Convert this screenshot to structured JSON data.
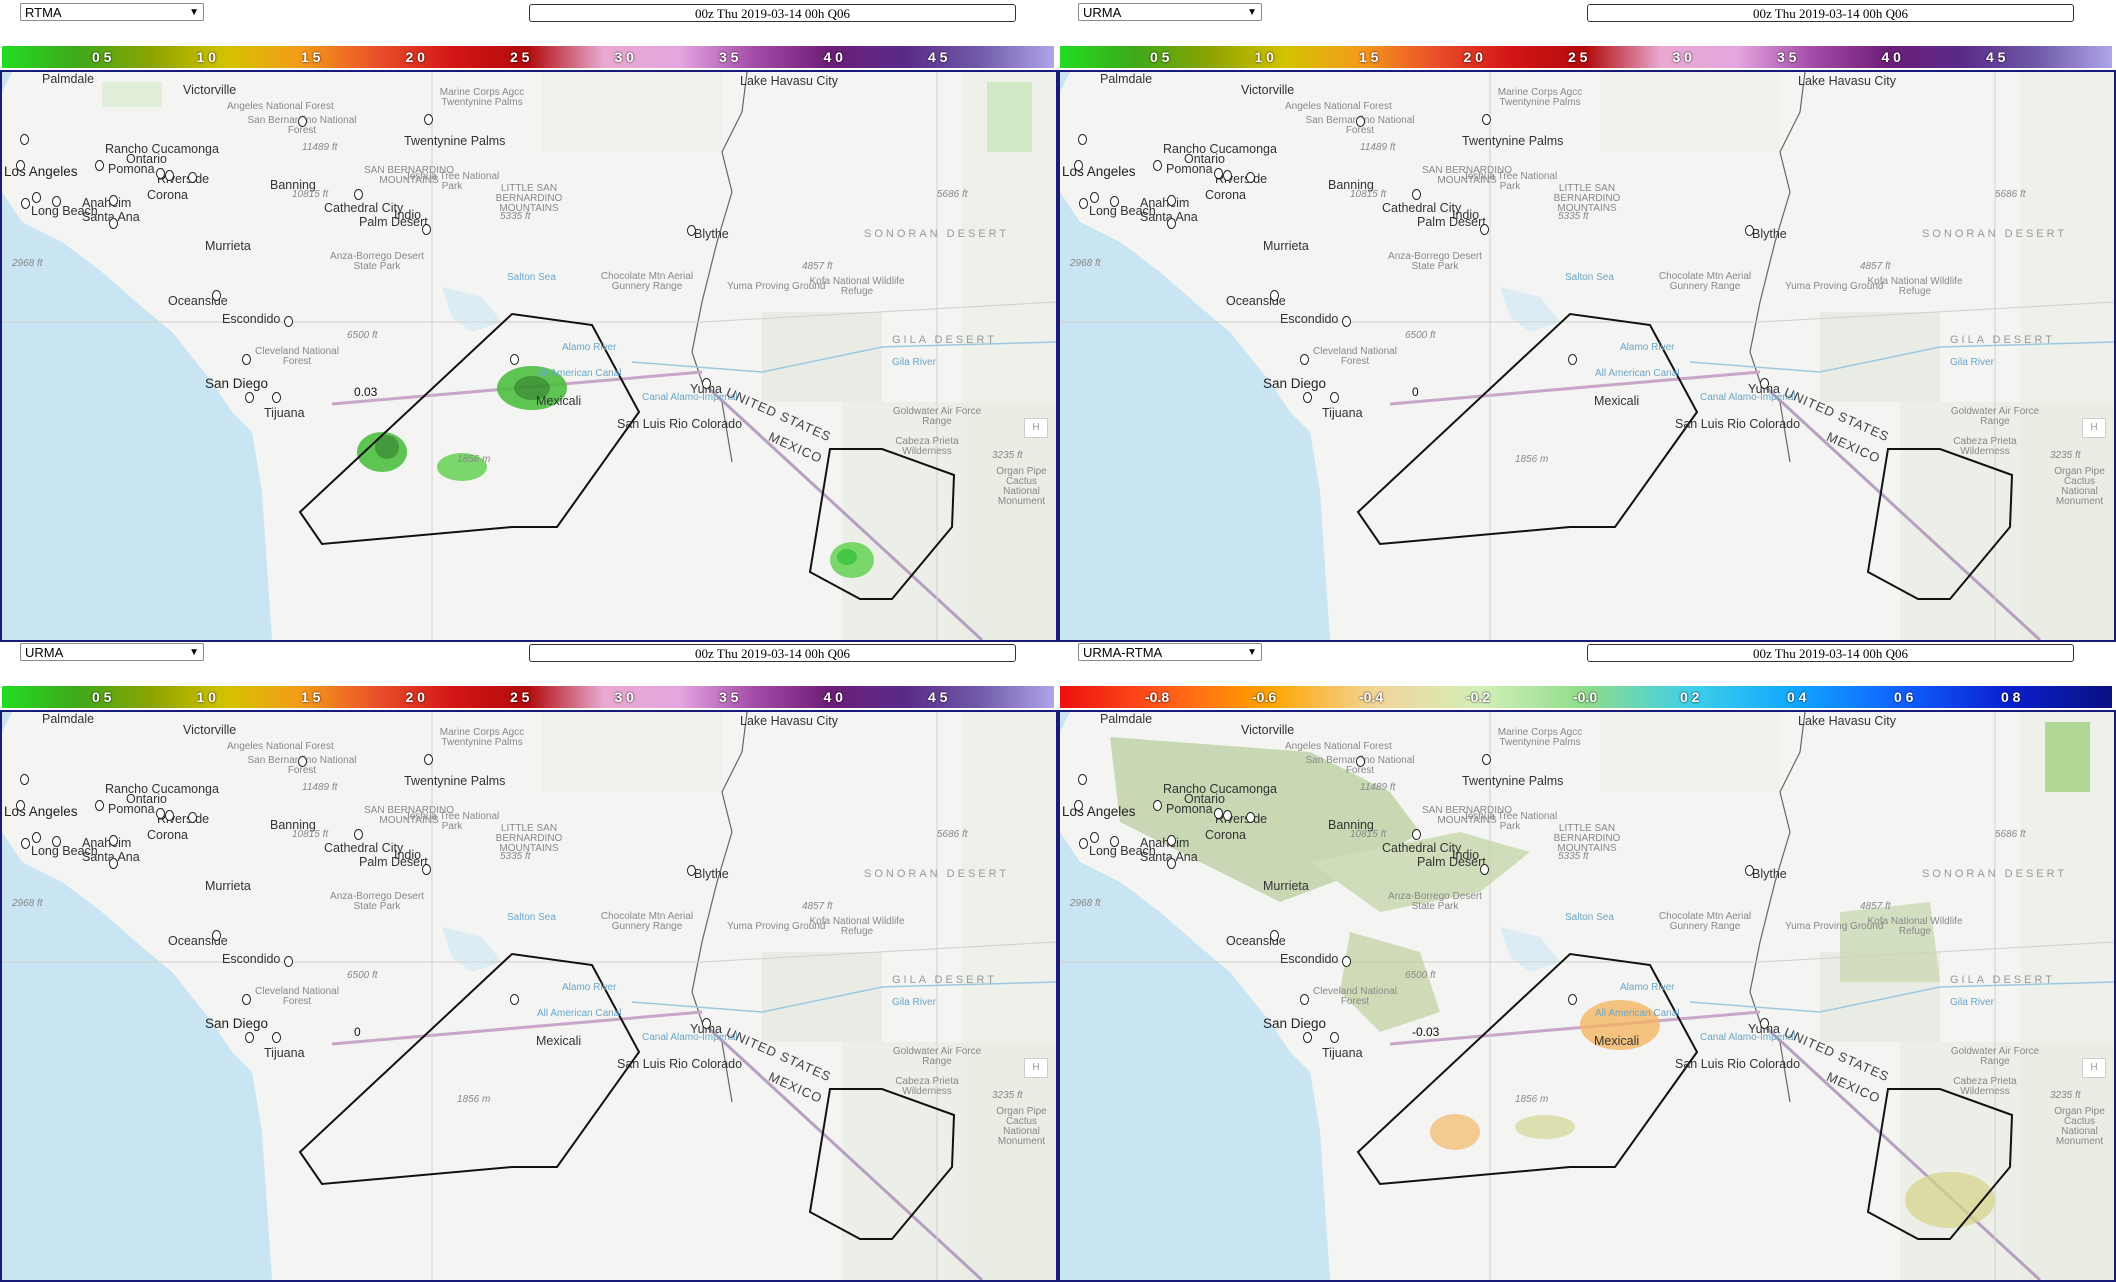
{
  "panels": [
    {
      "id": "p1",
      "product": "RTMA",
      "datetime": "00z Thu 2019-03-14 00h Q06",
      "scale": "precip",
      "overlay": "rtma",
      "value_label": "0.03"
    },
    {
      "id": "p2",
      "product": "URMA",
      "datetime": "00z Thu 2019-03-14 00h Q06",
      "scale": "precip",
      "overlay": "none",
      "value_label": "0"
    },
    {
      "id": "p3",
      "product": "URMA",
      "datetime": "00z Thu 2019-03-14 00h Q06",
      "scale": "precip",
      "overlay": "none",
      "value_label": "0"
    },
    {
      "id": "p4",
      "product": "URMA-RTMA",
      "datetime": "00z Thu 2019-03-14 00h Q06",
      "scale": "diff",
      "overlay": "diff",
      "value_label": "-0.03"
    }
  ],
  "scales": {
    "precip": {
      "ticks": [
        "0 5",
        "1 0",
        "1 5",
        "2 0",
        "2 5",
        "3 0",
        "3 5",
        "4 0",
        "4 5"
      ],
      "stops": [
        "#22dd22",
        "#3ea81a",
        "#8da400",
        "#d4c200",
        "#f59a1a",
        "#ea4f2a",
        "#d31515",
        "#b30b0b",
        "#e8a8cf",
        "#e4a6e0",
        "#a54ca8",
        "#6e1e78",
        "#5a2a88",
        "#6f5aa8",
        "#b0a4e8"
      ]
    },
    "diff": {
      "ticks": [
        "-0.8",
        "-0.6",
        "-0.4",
        "-0.2",
        "-0.0",
        "0 2",
        "0 4",
        "0 6",
        "0 8"
      ],
      "stops": [
        "#ee1010",
        "#ff5a1a",
        "#ffa500",
        "#f2d59a",
        "#d2efb8",
        "#8fdc8a",
        "#3fcfe8",
        "#10a6ff",
        "#1060ff",
        "#0a20d0",
        "#0a1080"
      ]
    }
  },
  "map_labels": {
    "cities": [
      "Victorville",
      "Rancho Cucamonga",
      "Ontario",
      "Pomona",
      "Riverside",
      "Corona",
      "Anaheim",
      "Santa Ana",
      "Long Beach",
      "Los Angeles",
      "Banning",
      "Twentynine Palms",
      "Cathedral City",
      "Palm Desert",
      "Indio",
      "Murrieta",
      "Oceanside",
      "Escondido",
      "San Diego",
      "Tijuana",
      "Mexicali",
      "Yuma",
      "San Luis Rio Colorado",
      "Blythe",
      "Lake Havasu City",
      "Palmdale"
    ],
    "features": [
      "Marine Corps Agcc Twentynine Palms",
      "San Bernardino National Forest",
      "SAN BERNARDINO MOUNTAINS",
      "Joshua Tree National Park",
      "LITTLE SAN BERNARDINO MOUNTAINS",
      "Anza-Borrego Desert State Park",
      "Chocolate Mtn Aerial Gunnery Range",
      "Yuma Proving Ground",
      "Kofa National Wildlife Refuge",
      "Goldwater Air Force Range",
      "Cabeza Prieta Wilderness",
      "Organ Pipe Cactus National Monument",
      "Cleveland National Forest",
      "Angeles National Forest"
    ],
    "regions": [
      "SONORAN DESERT",
      "GILA DESERT"
    ],
    "water": [
      "All American Canal",
      "Canal Alamo-Imperial",
      "Gila River",
      "Alamo River",
      "Salton Sea"
    ],
    "country_us": "UNITED STATES",
    "country_mx": "MEXICO",
    "elevations": [
      "2968 ft",
      "11489 ft",
      "10815 ft",
      "5335 ft",
      "5686 ft",
      "4857 ft",
      "6500 ft",
      "1856 m",
      "3235 ft"
    ]
  },
  "map_buttons": {
    "home": "H"
  }
}
